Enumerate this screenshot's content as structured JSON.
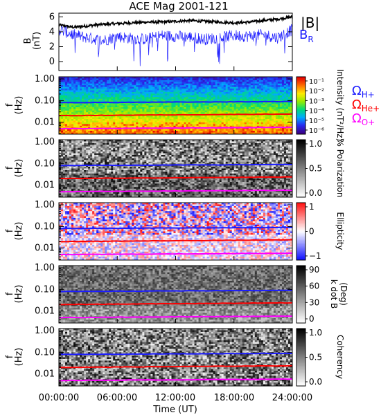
{
  "title": "ACE Mag 2001-121",
  "xlabel": "Time (UT)",
  "x_ticks": [
    "00:00:00",
    "06:00:00",
    "12:00:00",
    "18:00:00",
    "24:00:00"
  ],
  "colors": {
    "black": "#000000",
    "blue": "#1c1cff",
    "red": "#ff0000",
    "magenta": "#ff00ff"
  },
  "chart_data": [
    {
      "type": "line",
      "panel": "magnetic-field",
      "ylabel": "B (nT)",
      "ylabel_top": "B",
      "ylabel_bottom": "(nT)",
      "ylim": [
        -1.2,
        6.5
      ],
      "y_ticks": [
        "6",
        "4",
        "2",
        "0"
      ],
      "y_tick_values": [
        6,
        4,
        2,
        0
      ],
      "x_hours": [
        0,
        1.5,
        3,
        4.5,
        6,
        7.5,
        9,
        10.5,
        12,
        13.5,
        15,
        16.5,
        18,
        19.5,
        21,
        22.5,
        24
      ],
      "series": [
        {
          "name": "|B|",
          "color": "#000000",
          "values": [
            4.9,
            4.6,
            4.8,
            5.0,
            5.1,
            5.2,
            5.3,
            5.3,
            5.4,
            5.5,
            5.4,
            5.3,
            5.2,
            5.3,
            5.5,
            5.7,
            6.0
          ]
        },
        {
          "name": "B_R",
          "color": "#1c1cff",
          "values": [
            4.3,
            3.6,
            3.2,
            2.8,
            3.4,
            3.1,
            3.0,
            3.5,
            3.4,
            3.3,
            3.0,
            3.2,
            3.5,
            3.4,
            3.6,
            3.2,
            4.3
          ]
        }
      ],
      "legend": [
        {
          "label": "|B|",
          "color": "#000000"
        },
        {
          "label": "B",
          "sub": "R",
          "color": "#1c1cff"
        }
      ]
    },
    {
      "type": "heatmap",
      "panel": "intensity",
      "ylabel_top": "f",
      "ylabel_bottom": "(Hz)",
      "y_ticks": [
        "1.00",
        "0.10",
        "0.01"
      ],
      "y_scale": "log",
      "ylim_hz": [
        0.003,
        1.2
      ],
      "colorbar_label": "Intensity (nT²/Hz)",
      "colorbar_ticks": [
        "10⁻¹",
        "10⁻²",
        "10⁻³",
        "10⁻⁴",
        "10⁻⁵",
        "10⁻⁶"
      ],
      "colormap": "rainbow",
      "legend": [
        {
          "label": "Ω",
          "sub": "H+",
          "color": "#1c1cff"
        },
        {
          "label": "Ω",
          "sub": "He+",
          "color": "#ff0000"
        },
        {
          "label": "Ω",
          "sub": "O+",
          "color": "#ff00ff"
        }
      ]
    },
    {
      "type": "heatmap",
      "panel": "polarization",
      "ylabel_top": "f",
      "ylabel_bottom": "(Hz)",
      "y_ticks": [
        "1.00",
        "0.10",
        "0.01"
      ],
      "y_scale": "log",
      "colorbar_label": "% Polarization",
      "colorbar_ticks": [
        "1.0",
        "0.5",
        "0.0"
      ],
      "colormap": "gray"
    },
    {
      "type": "heatmap",
      "panel": "ellipticity",
      "ylabel_top": "f",
      "ylabel_bottom": "(Hz)",
      "y_ticks": [
        "1.00",
        "0.10",
        "0.01"
      ],
      "y_scale": "log",
      "colorbar_label": "Ellipticity",
      "colorbar_ticks": [
        "1",
        "0",
        "−1"
      ],
      "colormap": "blue-white-red"
    },
    {
      "type": "heatmap",
      "panel": "k-dot-b",
      "ylabel_top": "f",
      "ylabel_bottom": "(Hz)",
      "y_ticks": [
        "1.00",
        "0.10",
        "0.01"
      ],
      "y_scale": "log",
      "colorbar_label_1": "k dot B",
      "colorbar_label_2": "(Deg)",
      "colorbar_ticks": [
        "90",
        "60",
        "30",
        "0"
      ],
      "colormap": "gray"
    },
    {
      "type": "heatmap",
      "panel": "coherency",
      "ylabel_top": "f",
      "ylabel_bottom": "(Hz)",
      "y_ticks": [
        "1.00",
        "0.10",
        "0.01"
      ],
      "y_scale": "log",
      "colorbar_label": "Coherency",
      "colorbar_ticks": [
        "1.0",
        "0.5",
        "0.0"
      ],
      "colormap": "gray"
    }
  ],
  "gyrofrequency_lines": [
    {
      "name": "Ω_H+",
      "color": "#1c1cff",
      "hz_start": 0.08,
      "hz_end": 0.09
    },
    {
      "name": "Ω_He+",
      "color": "#ff0000",
      "hz_start": 0.02,
      "hz_end": 0.024
    },
    {
      "name": "Ω_O+",
      "color": "#ff00ff",
      "hz_start": 0.005,
      "hz_end": 0.0058
    }
  ]
}
